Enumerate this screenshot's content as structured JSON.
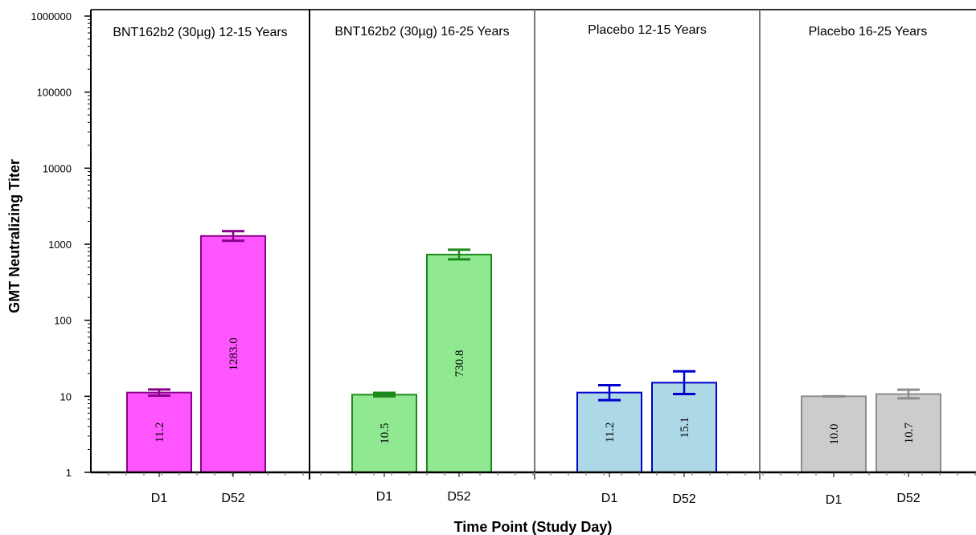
{
  "chart_data": {
    "type": "bar",
    "title": "",
    "ylabel": "GMT Neutralizing Titer",
    "xlabel": "Time Point (Study Day)",
    "yscale": "log",
    "ylim": [
      1,
      1000000
    ],
    "yticks": [
      {
        "value": 1,
        "label": "1"
      },
      {
        "value": 10,
        "label": "10"
      },
      {
        "value": 100,
        "label": "100"
      },
      {
        "value": 1000,
        "label": "1000"
      },
      {
        "value": 10000,
        "label": "10000"
      },
      {
        "value": 100000,
        "label": "100000"
      },
      {
        "value": 1000000,
        "label": "1000000"
      }
    ],
    "categories": [
      "D1",
      "D52"
    ],
    "panels": [
      {
        "title": "BNT162b2 (30µg) 12-15 Years",
        "fill": "#ff55ff",
        "stroke": "#8a008a",
        "bars": [
          {
            "category": "D1",
            "value": 11.2,
            "label": "11.2",
            "ci": [
              10.2,
              12.3
            ]
          },
          {
            "category": "D52",
            "value": 1283.0,
            "label": "1283.0",
            "ci": [
              1108,
              1485
            ]
          }
        ]
      },
      {
        "title": "BNT162b2 (30µg) 16-25 Years",
        "fill": "#90e890",
        "stroke": "#1e8a1e",
        "bars": [
          {
            "category": "D1",
            "value": 10.5,
            "label": "10.5",
            "ci": [
              10.0,
              11.1
            ]
          },
          {
            "category": "D52",
            "value": 730.8,
            "label": "730.8",
            "ci": [
              632,
              845
            ]
          }
        ]
      },
      {
        "title": "Placebo 12-15 Years",
        "fill": "#add8e6",
        "stroke": "#0000cc",
        "bars": [
          {
            "category": "D1",
            "value": 11.2,
            "label": "11.2",
            "ci": [
              8.9,
              14.0
            ]
          },
          {
            "category": "D52",
            "value": 15.1,
            "label": "15.1",
            "ci": [
              10.7,
              21.3
            ]
          }
        ]
      },
      {
        "title": "Placebo 16-25 Years",
        "fill": "#cccccc",
        "stroke": "#8c8c8c",
        "bars": [
          {
            "category": "D1",
            "value": 10.0,
            "label": "10.0",
            "ci": [
              10.0,
              10.0
            ]
          },
          {
            "category": "D52",
            "value": 10.7,
            "label": "10.7",
            "ci": [
              9.4,
              12.2
            ]
          }
        ]
      }
    ]
  }
}
